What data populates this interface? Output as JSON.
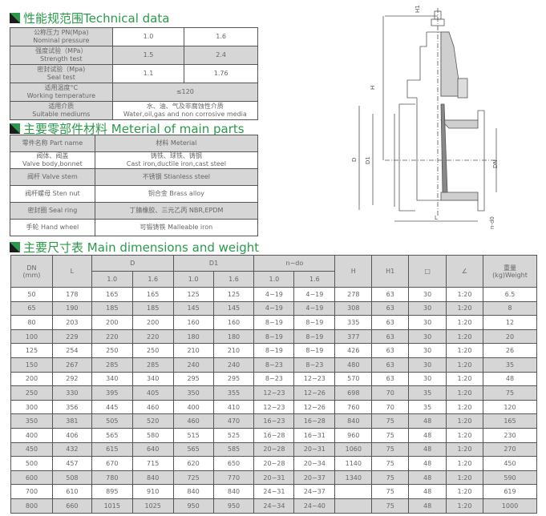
{
  "technical": {
    "title": "性能规范围Technical data",
    "rows": [
      {
        "cn": "公称压力 PN(Mpa)",
        "en": "Nominal pressure",
        "v1": "1.0",
        "v2": "1.6"
      },
      {
        "cn": "强度试验（MPa）",
        "en": "Strength test",
        "v1": "1.5",
        "v2": "2.4"
      },
      {
        "cn": "密封试验（Mpa)",
        "en": "Seal test",
        "v1": "1.1",
        "v2": "1.76"
      }
    ],
    "temp": {
      "cn": "适用温度°C",
      "en": "Working temperature",
      "v": "≤120"
    },
    "medium": {
      "cn": "适用介质",
      "en": "Suitable mediums",
      "v_cn": "水、油、气及非腐蚀性介质",
      "v_en": "Water,oil,gas and non corrosive media"
    }
  },
  "material": {
    "title": "主要零部件材料 Meterial of main parts",
    "header": {
      "part": "零件名称 Part name",
      "material": "材料 Meterial"
    },
    "body": {
      "part_cn": "阀体、阀盖",
      "part_en": "Valve body,bonnet",
      "mat_cn": "铸铁、球铁、铸钢",
      "mat_en": "Cast iron,ductile iron,cast steel"
    },
    "rows": [
      {
        "part": "阀杆 Valve stem",
        "mat": "不锈钢  Stianless steel"
      },
      {
        "part": "阀杆螺母 Sten nut",
        "mat": "铜合金 Brass alloy"
      },
      {
        "part": "密封圈 Seal ring",
        "mat": "丁腈橡胶、三元乙丙 NBR,EPDM"
      },
      {
        "part": "手轮  Hand wheel",
        "mat": "可锻铸铁 Malleable iron"
      }
    ]
  },
  "dimensions": {
    "title": "主要尺寸表 Main dimensions and weight",
    "headers": {
      "dn": "DN",
      "dn_unit": "(mm)",
      "l": "L",
      "d": "D",
      "d1": "D1",
      "ndo": "n−do",
      "h": "H",
      "h1": "H1",
      "sq": "□",
      "angle": "∠",
      "w_cn": "重量",
      "w_en": "(kg)Weight",
      "p1": "1.0",
      "p2": "1.6"
    },
    "rows": [
      [
        "50",
        "178",
        "165",
        "165",
        "125",
        "125",
        "4−19",
        "4−19",
        "278",
        "63",
        "30",
        "1:20",
        "6.5"
      ],
      [
        "65",
        "190",
        "185",
        "185",
        "145",
        "145",
        "4−19",
        "4−19",
        "308",
        "63",
        "30",
        "1:20",
        "8"
      ],
      [
        "80",
        "203",
        "200",
        "200",
        "160",
        "160",
        "8−19",
        "8−19",
        "335",
        "63",
        "30",
        "1:20",
        "12"
      ],
      [
        "100",
        "229",
        "220",
        "220",
        "180",
        "180",
        "8−19",
        "8−19",
        "377",
        "63",
        "30",
        "1:20",
        "20"
      ],
      [
        "125",
        "254",
        "250",
        "250",
        "210",
        "210",
        "8−19",
        "8−19",
        "426",
        "63",
        "30",
        "1:20",
        "26"
      ],
      [
        "150",
        "267",
        "285",
        "285",
        "240",
        "240",
        "8−23",
        "8−23",
        "480",
        "63",
        "30",
        "1:20",
        "35"
      ],
      [
        "200",
        "292",
        "340",
        "340",
        "295",
        "295",
        "8−23",
        "12−23",
        "570",
        "63",
        "30",
        "1:20",
        "48"
      ],
      [
        "250",
        "330",
        "395",
        "405",
        "350",
        "355",
        "12−23",
        "12−26",
        "698",
        "70",
        "35",
        "1:20",
        "75"
      ],
      [
        "300",
        "356",
        "445",
        "460",
        "400",
        "410",
        "12−23",
        "12−26",
        "760",
        "70",
        "35",
        "1:20",
        "120"
      ],
      [
        "350",
        "381",
        "505",
        "520",
        "460",
        "470",
        "16−23",
        "16−28",
        "840",
        "75",
        "48",
        "1:20",
        "165"
      ],
      [
        "400",
        "406",
        "565",
        "580",
        "515",
        "525",
        "16−28",
        "16−31",
        "960",
        "75",
        "48",
        "1:20",
        "230"
      ],
      [
        "450",
        "432",
        "615",
        "640",
        "565",
        "585",
        "20−28",
        "20−31",
        "1060",
        "75",
        "48",
        "1:20",
        "270"
      ],
      [
        "500",
        "457",
        "670",
        "715",
        "620",
        "650",
        "20−28",
        "20−34",
        "1140",
        "75",
        "48",
        "1:20",
        "450"
      ],
      [
        "600",
        "508",
        "780",
        "840",
        "725",
        "770",
        "20−31",
        "20−37",
        "1340",
        "75",
        "48",
        "1:20",
        "590"
      ],
      [
        "700",
        "610",
        "895",
        "910",
        "840",
        "840",
        "24−31",
        "24−37",
        "",
        "75",
        "48",
        "1:20",
        "619"
      ],
      [
        "800",
        "660",
        "1015",
        "1025",
        "950",
        "950",
        "24−34",
        "24−40",
        "",
        "75",
        "48",
        "1:20",
        "1000"
      ]
    ]
  },
  "drawing": {
    "labels": {
      "h1": "H1",
      "h": "H",
      "d": "D",
      "d1": "D1",
      "dn": "DN",
      "l": "L",
      "ndo": "n-d0"
    }
  },
  "colors": {
    "accent": "#2a9a4a",
    "row_grey": "#d6d6d6"
  }
}
